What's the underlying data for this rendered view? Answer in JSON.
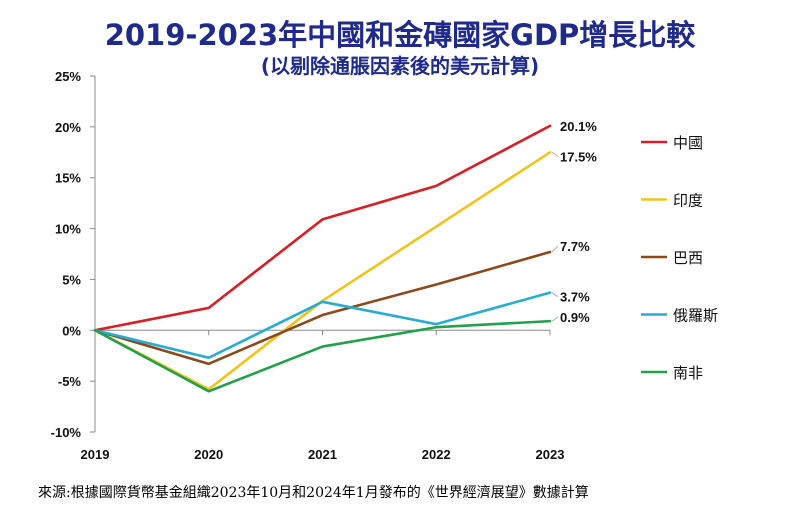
{
  "title": "2019-2023年中國和金磚國家GDP增長比較",
  "subtitle": "(以剔除通脹因素後的美元計算)",
  "source": "來源:根據國際貨幣基金組織2023年10月和2024年1月發布的《世界經濟展望》數據計算",
  "chart_data": {
    "type": "line",
    "title": "2019-2023年中國和金磚國家GDP增長比較",
    "subtitle": "(以剔除通脹因素後的美元計算)",
    "xlabel": "",
    "ylabel": "",
    "x": [
      "2019",
      "2020",
      "2021",
      "2022",
      "2023"
    ],
    "ylim": [
      -10,
      25
    ],
    "yticks": [
      25,
      20,
      15,
      10,
      5,
      0,
      -5,
      -10
    ],
    "ytick_labels": [
      "25%",
      "20%",
      "15%",
      "10%",
      "5%",
      "0%",
      "-5%",
      "-10%"
    ],
    "grid": false,
    "legend_position": "right",
    "series": [
      {
        "name": "中國",
        "color": "#d62027",
        "values": [
          0,
          2.2,
          10.9,
          14.2,
          20.1
        ],
        "end_label": "20.1%"
      },
      {
        "name": "印度",
        "color": "#f2c31b",
        "values": [
          0,
          -5.8,
          2.9,
          10.2,
          17.5
        ],
        "end_label": "17.5%"
      },
      {
        "name": "巴西",
        "color": "#8b4a1c",
        "values": [
          0,
          -3.3,
          1.5,
          4.5,
          7.7
        ],
        "end_label": "7.7%"
      },
      {
        "name": "俄羅斯",
        "color": "#2aabd2",
        "values": [
          0,
          -2.7,
          2.8,
          0.6,
          3.7
        ],
        "end_label": "3.7%"
      },
      {
        "name": "南非",
        "color": "#23a04a",
        "values": [
          0,
          -6.0,
          -1.6,
          0.3,
          0.9
        ],
        "end_label": "0.9%"
      }
    ]
  }
}
